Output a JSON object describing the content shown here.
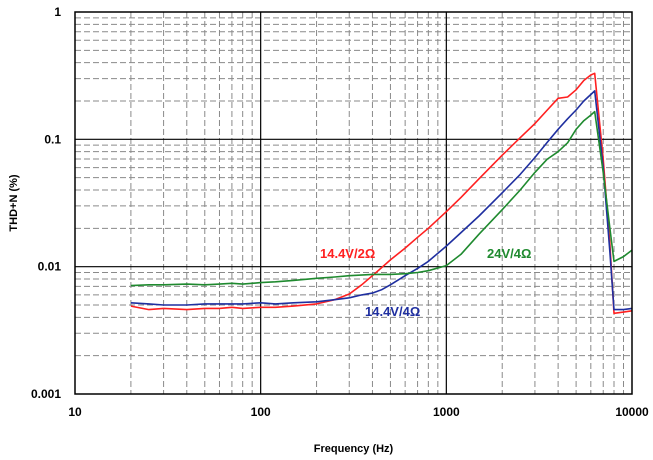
{
  "chart_data": {
    "type": "line",
    "xlabel": "Frequency (Hz)",
    "ylabel": "THD+N (%)",
    "x_scale": "log",
    "y_scale": "log",
    "xlim": [
      10,
      10000
    ],
    "ylim": [
      0.001,
      1
    ],
    "x_ticks": [
      "10",
      "100",
      "1000",
      "10000"
    ],
    "y_ticks": [
      "0.001",
      "0.01",
      "0.1",
      "1"
    ],
    "grid": true,
    "series": [
      {
        "name": "14.4V/2Ω",
        "color": "#ff2020",
        "x": [
          20,
          25,
          30,
          40,
          50,
          60,
          70,
          80,
          100,
          120,
          150,
          200,
          250,
          300,
          350,
          400,
          500,
          600,
          700,
          800,
          1000,
          1200,
          1500,
          2000,
          2500,
          3000,
          3500,
          4000,
          4500,
          5000,
          5500,
          6000,
          6300,
          7000,
          7600,
          8000,
          9000,
          10000
        ],
        "y": [
          0.0049,
          0.0046,
          0.0047,
          0.0046,
          0.0047,
          0.0047,
          0.0048,
          0.0047,
          0.0048,
          0.0048,
          0.0049,
          0.0051,
          0.0055,
          0.0061,
          0.0072,
          0.0085,
          0.0113,
          0.014,
          0.017,
          0.02,
          0.027,
          0.035,
          0.049,
          0.075,
          0.103,
          0.133,
          0.17,
          0.21,
          0.215,
          0.245,
          0.29,
          0.32,
          0.33,
          0.07,
          0.015,
          0.0043,
          0.0044,
          0.0045
        ]
      },
      {
        "name": "14.4V/4Ω",
        "color": "#1f2fa0",
        "x": [
          20,
          25,
          30,
          40,
          50,
          60,
          70,
          80,
          100,
          120,
          150,
          200,
          250,
          300,
          350,
          400,
          450,
          500,
          600,
          700,
          800,
          1000,
          1200,
          1500,
          2000,
          2500,
          3000,
          3500,
          4000,
          4500,
          5000,
          5500,
          6000,
          6300,
          7000,
          7600,
          8000,
          9000,
          10000
        ],
        "y": [
          0.0052,
          0.0051,
          0.005,
          0.005,
          0.0051,
          0.0051,
          0.0051,
          0.0051,
          0.0052,
          0.0051,
          0.0052,
          0.0053,
          0.0055,
          0.0057,
          0.006,
          0.0062,
          0.0066,
          0.0072,
          0.0085,
          0.0097,
          0.011,
          0.0145,
          0.0185,
          0.025,
          0.038,
          0.053,
          0.072,
          0.095,
          0.12,
          0.145,
          0.17,
          0.2,
          0.225,
          0.24,
          0.06,
          0.013,
          0.0046,
          0.0046,
          0.0047
        ]
      },
      {
        "name": "24V/4Ω",
        "color": "#1f8a2f",
        "x": [
          20,
          25,
          30,
          40,
          50,
          60,
          70,
          80,
          100,
          120,
          150,
          200,
          250,
          300,
          400,
          500,
          600,
          700,
          800,
          1000,
          1200,
          1500,
          2000,
          2500,
          3000,
          3500,
          4000,
          4500,
          5000,
          5500,
          6000,
          6300,
          7000,
          7600,
          8000,
          9000,
          10000
        ],
        "y": [
          0.0071,
          0.0072,
          0.0072,
          0.0073,
          0.0072,
          0.0073,
          0.0074,
          0.0073,
          0.0075,
          0.0076,
          0.0078,
          0.0081,
          0.0083,
          0.0085,
          0.0087,
          0.0087,
          0.0088,
          0.009,
          0.0093,
          0.0102,
          0.0125,
          0.018,
          0.028,
          0.04,
          0.055,
          0.07,
          0.08,
          0.094,
          0.12,
          0.14,
          0.155,
          0.165,
          0.055,
          0.02,
          0.011,
          0.012,
          0.0135
        ]
      }
    ]
  }
}
